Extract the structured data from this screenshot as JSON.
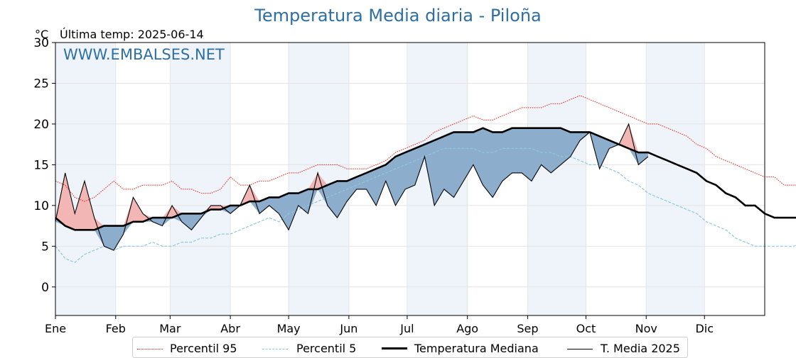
{
  "title": "Temperatura Media diaria - Piloña",
  "unit_label": "°C",
  "last_temp": "Última temp: 2025-06-14",
  "watermark": "WWW.EMBALSES.NET",
  "colors": {
    "title": "#2e6fa3",
    "p95": "#e8160c",
    "p5": "#8ec8dc",
    "median": "#000000",
    "current": "#000000",
    "above_fill": "#f2b7b5",
    "below_fill": "#8cadcb",
    "band": "#eef4fa"
  },
  "chart_data": {
    "type": "line",
    "title": "Temperatura Media diaria - Piloña",
    "ylabel": "°C",
    "ylim": [
      -3.5,
      30
    ],
    "xlim": [
      0,
      365
    ],
    "grid": true,
    "legend_position": "bottom",
    "yticks": [
      0,
      5,
      10,
      15,
      20,
      25,
      30
    ],
    "month_labels": [
      "Ene",
      "Feb",
      "Mar",
      "Abr",
      "May",
      "Jun",
      "Jul",
      "Ago",
      "Sep",
      "Oct",
      "Nov",
      "Dic"
    ],
    "month_starts": [
      0,
      31,
      59,
      90,
      120,
      151,
      181,
      212,
      243,
      273,
      304,
      334
    ],
    "x_day_step": 5,
    "series": [
      {
        "name": "Percentil 95",
        "style": "dotted-red",
        "values": [
          13,
          12.5,
          11,
          10.5,
          11,
          12,
          13,
          12,
          12,
          12.5,
          12.5,
          12.5,
          13,
          12,
          12,
          11.5,
          11.5,
          12,
          13.5,
          12.5,
          12.5,
          13,
          13,
          13.5,
          14,
          14,
          14.5,
          15,
          15,
          15,
          14.5,
          14.5,
          14.5,
          15,
          15.5,
          16.5,
          17,
          17.5,
          18,
          19,
          19.5,
          20,
          20.5,
          21,
          20.5,
          20.5,
          21,
          21.5,
          22,
          22,
          22,
          22.5,
          22.5,
          23,
          23.5,
          23,
          22.5,
          22,
          21.5,
          21,
          20.5,
          20,
          20,
          19.5,
          19,
          18.5,
          17.5,
          17,
          16,
          15.5,
          15,
          14.5,
          14,
          13.5,
          13.5,
          12.5,
          12.5,
          12.5,
          12.5,
          12.5
        ]
      },
      {
        "name": "Percentil 5",
        "style": "dashed-lightblue",
        "values": [
          5,
          3.5,
          3,
          4,
          4.5,
          5,
          4.5,
          5,
          5,
          5,
          5.5,
          5,
          5,
          5.5,
          5.5,
          6,
          6,
          6.5,
          6.5,
          7,
          7.5,
          8,
          8.5,
          8,
          9,
          9.5,
          10,
          10.5,
          11,
          11.5,
          12,
          12.5,
          13,
          13.5,
          14,
          14.5,
          15,
          15.5,
          16,
          16.5,
          17,
          17,
          17,
          17,
          16.5,
          16.5,
          17,
          17,
          17,
          17,
          16.5,
          16.5,
          16,
          16,
          15.5,
          15,
          15,
          14.5,
          14,
          13,
          12.5,
          11.5,
          11,
          10.5,
          10,
          9.5,
          9,
          8,
          7.5,
          7,
          6,
          5.5,
          5,
          5,
          5,
          5,
          5,
          5.5,
          5.5,
          5.5
        ]
      },
      {
        "name": "Temperatura Mediana",
        "style": "thick-black",
        "values": [
          8.5,
          7.5,
          7,
          7,
          7,
          7.5,
          7.5,
          7.5,
          8,
          8,
          8.5,
          8.5,
          8.5,
          9,
          9,
          9,
          9.5,
          9.5,
          10,
          10,
          10.5,
          10.5,
          11,
          11,
          11.5,
          11.5,
          12,
          12,
          12.5,
          13,
          13,
          13.5,
          14,
          14.5,
          15,
          16,
          16.5,
          17,
          17.5,
          18,
          18.5,
          19,
          19,
          19,
          19.5,
          19,
          19,
          19.5,
          19.5,
          19.5,
          19.5,
          19.5,
          19.5,
          19,
          19,
          19,
          18.5,
          18,
          17.5,
          17,
          16.5,
          16.5,
          16,
          15.5,
          15,
          14.5,
          14,
          13,
          12.5,
          11.5,
          11,
          10,
          10,
          9,
          8.5,
          8.5,
          8.5,
          8.5,
          8.5,
          9
        ]
      },
      {
        "name": "T. Media 2025",
        "style": "thin-black",
        "values": [
          8,
          14,
          9,
          13,
          8.5,
          5,
          4.5,
          6.5,
          11,
          9,
          8,
          7.5,
          10,
          8,
          7,
          8.5,
          10,
          10,
          9,
          10,
          12.5,
          9,
          10,
          9,
          7,
          10,
          9,
          14,
          10,
          8.5,
          10.5,
          12,
          12,
          10,
          13,
          10,
          12,
          12.5,
          16,
          10,
          12,
          11,
          13,
          15,
          12.5,
          11,
          13,
          14,
          14,
          13,
          15,
          14,
          15,
          16,
          18,
          19,
          14.5,
          17,
          17.5,
          20,
          15,
          16
        ]
      }
    ]
  },
  "legend": [
    {
      "label": "Percentil 95"
    },
    {
      "label": "Percentil 5"
    },
    {
      "label": "Temperatura Mediana"
    },
    {
      "label": "T. Media 2025"
    }
  ]
}
